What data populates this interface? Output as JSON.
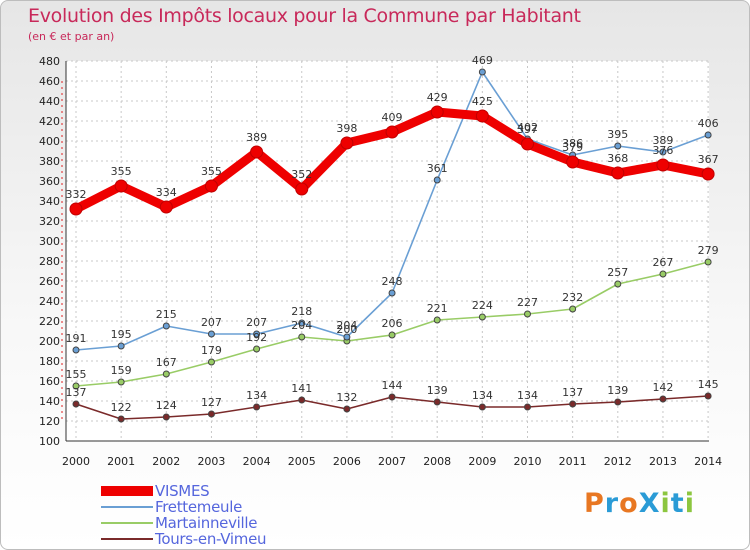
{
  "title": "Evolution des Impôts locaux pour la Commune par Habitant",
  "subtitle": "(en € et par an)",
  "logo": {
    "text": "ProXiti",
    "colors": [
      "#e87722",
      "#2a9bd6",
      "#e87722",
      "#2a9bd6",
      "#8cc63f",
      "#2a9bd6",
      "#8cc63f"
    ]
  },
  "chart_data": {
    "type": "line",
    "categories": [
      "2000",
      "2001",
      "2002",
      "2003",
      "2004",
      "2005",
      "2006",
      "2007",
      "2008",
      "2009",
      "2010",
      "2011",
      "2012",
      "2013",
      "2014"
    ],
    "ylim": [
      100,
      480
    ],
    "yticks": [
      "100",
      "120",
      "140",
      "160",
      "180",
      "200",
      "220",
      "240",
      "260",
      "280",
      "300",
      "320",
      "340",
      "360",
      "380",
      "400",
      "420",
      "440",
      "460",
      "480"
    ],
    "grid": true,
    "series": [
      {
        "name": "VISMES",
        "color": "#ee0000",
        "values": [
          332,
          355,
          334,
          355,
          389,
          352,
          398,
          409,
          429,
          425,
          397,
          379,
          368,
          376,
          367
        ],
        "labels": [
          "332",
          "355",
          "334",
          "355",
          "389",
          "352",
          "398",
          "409",
          "429",
          "425",
          "397",
          "379",
          "368",
          "376",
          "367"
        ]
      },
      {
        "name": "Frettemeule",
        "color": "#6a9fd4",
        "values": [
          191,
          195,
          215,
          207,
          207,
          218,
          204,
          248,
          361,
          469,
          402,
          386,
          395,
          389,
          406
        ],
        "labels": [
          "191",
          "195",
          "215",
          "207",
          "207",
          "218",
          "204",
          "248",
          "361",
          "469",
          "402",
          "386",
          "395",
          "389",
          "406"
        ]
      },
      {
        "name": "Martainneville",
        "color": "#99cc66",
        "values": [
          155,
          159,
          167,
          179,
          192,
          204,
          200,
          206,
          221,
          224,
          227,
          232,
          257,
          267,
          279
        ],
        "labels": [
          "155",
          "159",
          "167",
          "179",
          "192",
          "204",
          "200",
          "206",
          "221",
          "224",
          "227",
          "232",
          "257",
          "267",
          "279"
        ]
      },
      {
        "name": "Tours-en-Vimeu",
        "color": "#7a2a2a",
        "values": [
          137,
          122,
          124,
          127,
          134,
          141,
          132,
          144,
          139,
          134,
          134,
          137,
          139,
          142,
          145
        ],
        "labels": [
          "137",
          "122",
          "124",
          "127",
          "134",
          "141",
          "132",
          "144",
          "139",
          "134",
          "134",
          "137",
          "139",
          "142",
          "145"
        ]
      }
    ]
  }
}
